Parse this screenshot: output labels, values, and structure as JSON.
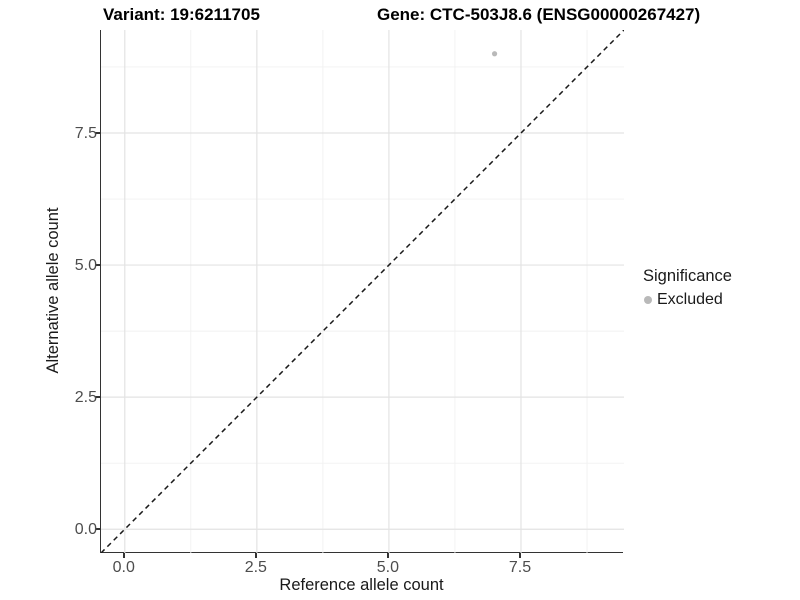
{
  "title": {
    "variant": "Variant: 19:6211705",
    "gene": "Gene: CTC-503J8.6 (ENSG00000267427)"
  },
  "chart_data": {
    "type": "scatter",
    "title_left": "Variant: 19:6211705",
    "title_right": "Gene: CTC-503J8.6 (ENSG00000267427)",
    "xlabel": "Reference allele count",
    "ylabel": "Alternative allele count",
    "xlim": [
      -0.45,
      9.45
    ],
    "ylim": [
      -0.45,
      9.45
    ],
    "x_ticks": [
      0.0,
      2.5,
      5.0,
      7.5
    ],
    "y_ticks": [
      0.0,
      2.5,
      5.0,
      7.5
    ],
    "x_tick_labels": [
      "0.0",
      "2.5",
      "5.0",
      "7.5"
    ],
    "y_tick_labels": [
      "0.0",
      "2.5",
      "5.0",
      "7.5"
    ],
    "minor_gridlines": [
      1.25,
      3.75,
      6.25,
      8.75
    ],
    "grid": true,
    "series": [
      {
        "name": "Excluded",
        "points": [
          {
            "x": 7,
            "y": 9
          }
        ],
        "color": "#b9b9b9"
      }
    ],
    "identity_line": {
      "type": "y=x",
      "style": "dashed",
      "color": "#1a1a1a"
    },
    "legend": {
      "title": "Significance",
      "position": "right",
      "entries": [
        {
          "label": "Excluded",
          "color": "#b9b9b9"
        }
      ]
    }
  },
  "colors": {
    "background": "#ffffff",
    "axis_line": "#333333",
    "grid_major": "#e3e3e3",
    "grid_minor": "#f1f1f1",
    "tick_label": "#4d4d4d",
    "point": "#b9b9b9",
    "dashed_line": "#1a1a1a"
  }
}
